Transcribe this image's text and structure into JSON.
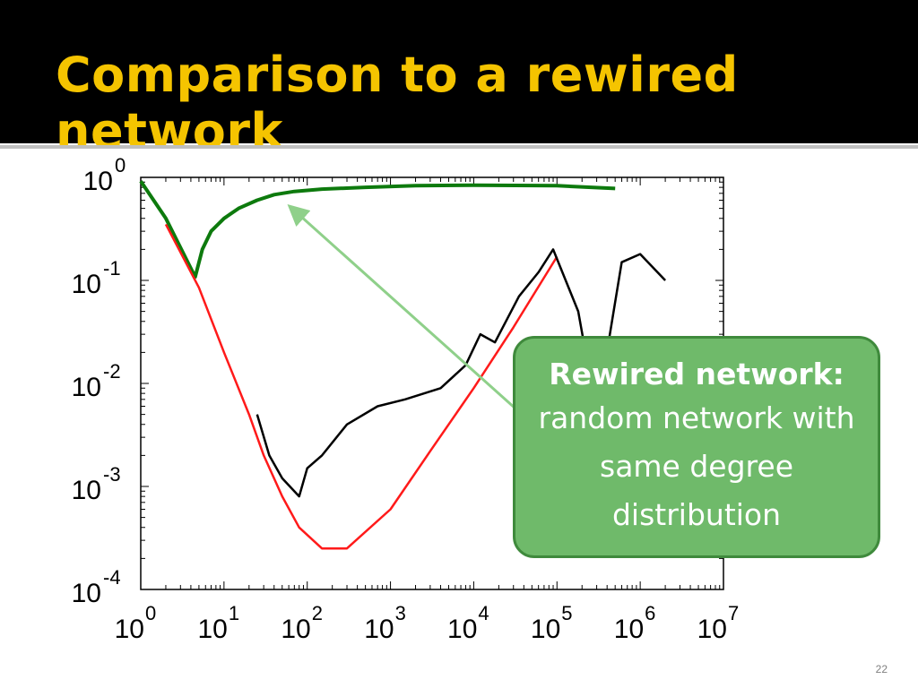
{
  "slide": {
    "title": "Comparison to a rewired network",
    "page_number": "22"
  },
  "callout": {
    "heading": "Rewired network:",
    "body": "random network with same degree distribution"
  },
  "colors": {
    "title_text": "#f5c400",
    "title_background": "#000000",
    "original_series": "#000000",
    "random_series": "#ff1a1a",
    "rewired_series": "#0d7a0d",
    "callout_fill": "#6fba6a",
    "arrow": "#8fd08a"
  },
  "chart_data": {
    "type": "line",
    "x_scale": "log",
    "y_scale": "log",
    "xlim": [
      1,
      10000000
    ],
    "ylim": [
      0.0001,
      1
    ],
    "x_ticks": [
      {
        "value": 1,
        "mant": "10",
        "exp": "0"
      },
      {
        "value": 10,
        "mant": "10",
        "exp": "1"
      },
      {
        "value": 100,
        "mant": "10",
        "exp": "2"
      },
      {
        "value": 1000,
        "mant": "10",
        "exp": "3"
      },
      {
        "value": 10000,
        "mant": "10",
        "exp": "4"
      },
      {
        "value": 100000,
        "mant": "10",
        "exp": "5"
      },
      {
        "value": 1000000,
        "mant": "10",
        "exp": "6"
      },
      {
        "value": 10000000,
        "mant": "10",
        "exp": "7"
      }
    ],
    "y_ticks": [
      {
        "value": 1,
        "mant": "10",
        "exp": "0"
      },
      {
        "value": 0.1,
        "mant": "10",
        "exp": "-1"
      },
      {
        "value": 0.01,
        "mant": "10",
        "exp": "-2"
      },
      {
        "value": 0.001,
        "mant": "10",
        "exp": "-3"
      },
      {
        "value": 0.0001,
        "mant": "10",
        "exp": "-4"
      }
    ],
    "xlabel": "",
    "ylabel": "",
    "grid": false,
    "series": [
      {
        "color": "#0d7a0d",
        "points": [
          [
            1,
            0.92
          ],
          [
            2,
            0.4
          ],
          [
            4.5,
            0.108
          ],
          [
            5.5,
            0.2
          ],
          [
            7,
            0.3
          ],
          [
            10,
            0.4
          ],
          [
            15,
            0.5
          ],
          [
            25,
            0.6
          ],
          [
            40,
            0.68
          ],
          [
            70,
            0.73
          ],
          [
            150,
            0.77
          ],
          [
            500,
            0.8
          ],
          [
            2000,
            0.83
          ],
          [
            10000,
            0.84
          ],
          [
            100000,
            0.83
          ],
          [
            500000,
            0.78
          ]
        ]
      },
      {
        "color": "#ff1a1a",
        "points": [
          [
            2,
            0.35
          ],
          [
            5,
            0.085
          ],
          [
            10,
            0.02
          ],
          [
            20,
            0.005
          ],
          [
            30,
            0.002
          ],
          [
            50,
            0.0008
          ],
          [
            80,
            0.0004
          ],
          [
            150,
            0.00025
          ],
          [
            300,
            0.00025
          ],
          [
            1000,
            0.0006
          ],
          [
            3000,
            0.0022
          ],
          [
            10000,
            0.009
          ],
          [
            30000,
            0.035
          ],
          [
            100000,
            0.17
          ]
        ]
      },
      {
        "color": "#000000",
        "points": [
          [
            25,
            0.005
          ],
          [
            35,
            0.002
          ],
          [
            50,
            0.0012
          ],
          [
            80,
            0.0008
          ],
          [
            100,
            0.0015
          ],
          [
            150,
            0.002
          ],
          [
            300,
            0.004
          ],
          [
            700,
            0.006
          ],
          [
            1500,
            0.007
          ],
          [
            4000,
            0.009
          ],
          [
            8000,
            0.015
          ],
          [
            12000,
            0.03
          ],
          [
            18000,
            0.025
          ],
          [
            35000,
            0.07
          ],
          [
            60000,
            0.12
          ],
          [
            90000,
            0.2
          ],
          [
            180000,
            0.05
          ],
          [
            300000,
            0.005
          ],
          [
            600000,
            0.15
          ],
          [
            1000000,
            0.18
          ],
          [
            2000000,
            0.1
          ]
        ]
      }
    ]
  }
}
